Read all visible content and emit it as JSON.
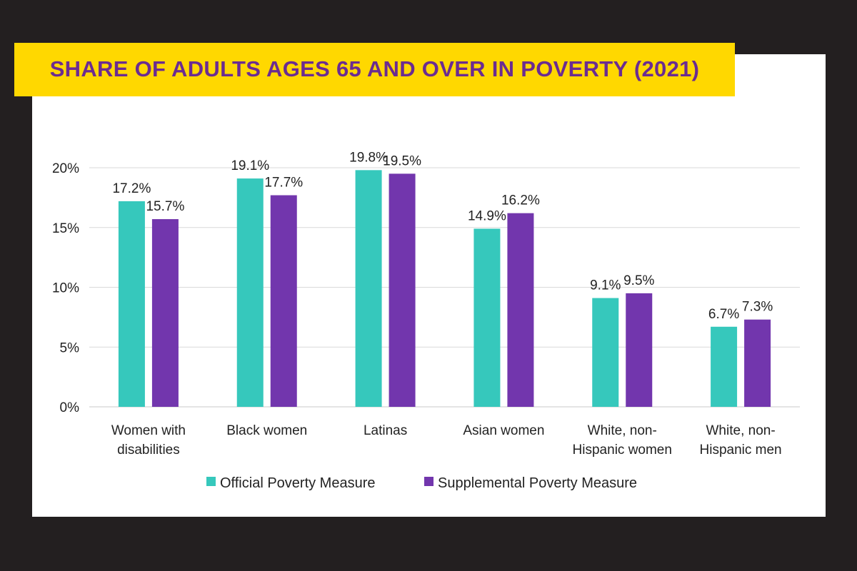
{
  "header": {
    "title": "SHARE OF ADULTS AGES 65 AND OVER IN POVERTY (2021)"
  },
  "colors": {
    "official": "#36c8bc",
    "supplemental": "#7236ad",
    "banner": "#ffd800",
    "title": "#6b2c91",
    "frame": "#231f20"
  },
  "chart_data": {
    "type": "bar",
    "title": "SHARE OF ADULTS AGES 65 AND OVER IN POVERTY (2021)",
    "categories": [
      [
        "Women with",
        "disabilities"
      ],
      [
        "Black women"
      ],
      [
        "Latinas"
      ],
      [
        "Asian women"
      ],
      [
        "White, non-",
        "Hispanic women"
      ],
      [
        "White, non-",
        "Hispanic men"
      ]
    ],
    "series": [
      {
        "name": "Official Poverty Measure",
        "values": [
          17.2,
          19.1,
          19.8,
          14.9,
          9.1,
          6.7
        ],
        "labels": [
          "17.2%",
          "19.1%",
          "19.8%",
          "14.9%",
          "9.1%",
          "6.7%"
        ]
      },
      {
        "name": "Supplemental Poverty Measure",
        "values": [
          15.7,
          17.7,
          19.5,
          16.2,
          9.5,
          7.3
        ],
        "labels": [
          "15.7%",
          "17.7%",
          "19.5%",
          "16.2%",
          "9.5%",
          "7.3%"
        ]
      }
    ],
    "yticks": [
      "0%",
      "5%",
      "10%",
      "15%",
      "20%"
    ],
    "ytick_values": [
      0,
      5,
      10,
      15,
      20
    ],
    "ylim": [
      0,
      20
    ],
    "xlabel": "",
    "ylabel": "",
    "grid": true,
    "legend": "bottom-center"
  }
}
